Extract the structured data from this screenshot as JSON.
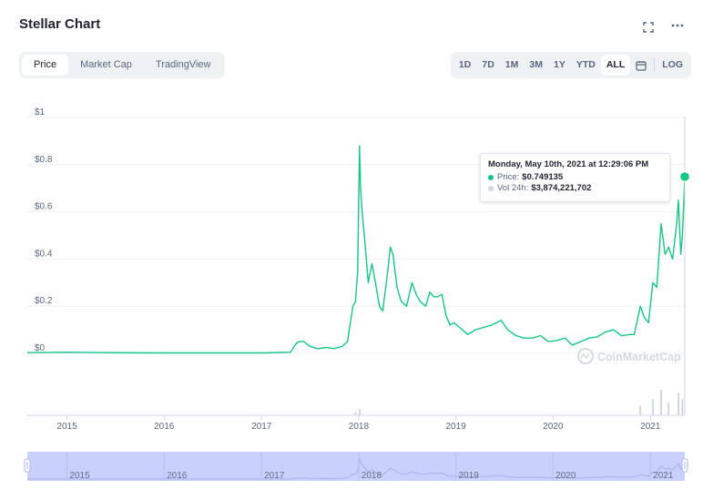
{
  "header": {
    "title": "Stellar Chart",
    "expand_icon": "expand-icon",
    "more_icon": "more-dots-icon"
  },
  "tabs": [
    {
      "label": "Price",
      "active": true
    },
    {
      "label": "Market Cap",
      "active": false
    },
    {
      "label": "TradingView",
      "active": false
    }
  ],
  "ranges": [
    {
      "label": "1D",
      "active": false
    },
    {
      "label": "7D",
      "active": false
    },
    {
      "label": "1M",
      "active": false
    },
    {
      "label": "3M",
      "active": false
    },
    {
      "label": "1Y",
      "active": false
    },
    {
      "label": "YTD",
      "active": false
    },
    {
      "label": "ALL",
      "active": true
    }
  ],
  "calendar_icon": "calendar-icon",
  "log_label": "LOG",
  "tooltip": {
    "date": "Monday, May 10th, 2021 at 12:29:06 PM",
    "price_label": "Price:",
    "price_value": "$0.749135",
    "vol_label": "Vol 24h:",
    "vol_value": "$3,874,221,702"
  },
  "watermark": "CoinMarketCap",
  "colors": {
    "line": "#16c784",
    "volume": "#cfd6e4",
    "navigator": "#c9d0fb",
    "accent_dot": "#16c784"
  },
  "chart_data": {
    "type": "line",
    "title": "Stellar Chart",
    "series": [
      {
        "name": "Price",
        "points": [
          [
            "2014-08-05",
            0.003
          ],
          [
            "2015-01-01",
            0.005
          ],
          [
            "2015-06-01",
            0.003
          ],
          [
            "2016-01-01",
            0.002
          ],
          [
            "2016-06-01",
            0.002
          ],
          [
            "2017-01-01",
            0.002
          ],
          [
            "2017-04-20",
            0.005
          ],
          [
            "2017-05-10",
            0.04
          ],
          [
            "2017-05-20",
            0.05
          ],
          [
            "2017-06-10",
            0.05
          ],
          [
            "2017-07-01",
            0.03
          ],
          [
            "2017-08-01",
            0.02
          ],
          [
            "2017-09-01",
            0.025
          ],
          [
            "2017-10-01",
            0.02
          ],
          [
            "2017-11-01",
            0.03
          ],
          [
            "2017-11-20",
            0.05
          ],
          [
            "2017-12-10",
            0.2
          ],
          [
            "2017-12-20",
            0.22
          ],
          [
            "2017-12-28",
            0.35
          ],
          [
            "2018-01-04",
            0.88
          ],
          [
            "2018-01-08",
            0.7
          ],
          [
            "2018-01-14",
            0.6
          ],
          [
            "2018-01-22",
            0.5
          ],
          [
            "2018-02-06",
            0.3
          ],
          [
            "2018-02-20",
            0.38
          ],
          [
            "2018-03-05",
            0.3
          ],
          [
            "2018-03-20",
            0.2
          ],
          [
            "2018-04-01",
            0.18
          ],
          [
            "2018-04-15",
            0.3
          ],
          [
            "2018-04-30",
            0.45
          ],
          [
            "2018-05-10",
            0.42
          ],
          [
            "2018-05-25",
            0.28
          ],
          [
            "2018-06-10",
            0.22
          ],
          [
            "2018-06-30",
            0.2
          ],
          [
            "2018-07-20",
            0.3
          ],
          [
            "2018-08-05",
            0.25
          ],
          [
            "2018-08-20",
            0.22
          ],
          [
            "2018-09-10",
            0.2
          ],
          [
            "2018-09-25",
            0.26
          ],
          [
            "2018-10-10",
            0.24
          ],
          [
            "2018-10-25",
            0.24
          ],
          [
            "2018-11-10",
            0.25
          ],
          [
            "2018-11-25",
            0.16
          ],
          [
            "2018-12-10",
            0.12
          ],
          [
            "2018-12-25",
            0.13
          ],
          [
            "2019-01-15",
            0.11
          ],
          [
            "2019-02-15",
            0.08
          ],
          [
            "2019-03-15",
            0.1
          ],
          [
            "2019-04-15",
            0.11
          ],
          [
            "2019-05-15",
            0.12
          ],
          [
            "2019-06-20",
            0.14
          ],
          [
            "2019-07-15",
            0.1
          ],
          [
            "2019-08-15",
            0.075
          ],
          [
            "2019-09-15",
            0.065
          ],
          [
            "2019-10-15",
            0.065
          ],
          [
            "2019-11-15",
            0.075
          ],
          [
            "2019-12-15",
            0.05
          ],
          [
            "2020-01-15",
            0.055
          ],
          [
            "2020-02-15",
            0.065
          ],
          [
            "2020-03-13",
            0.035
          ],
          [
            "2020-04-15",
            0.05
          ],
          [
            "2020-05-15",
            0.065
          ],
          [
            "2020-06-15",
            0.07
          ],
          [
            "2020-07-15",
            0.09
          ],
          [
            "2020-08-15",
            0.1
          ],
          [
            "2020-09-15",
            0.075
          ],
          [
            "2020-10-15",
            0.08
          ],
          [
            "2020-11-01",
            0.08
          ],
          [
            "2020-11-24",
            0.2
          ],
          [
            "2020-12-10",
            0.15
          ],
          [
            "2020-12-25",
            0.13
          ],
          [
            "2021-01-10",
            0.3
          ],
          [
            "2021-01-25",
            0.28
          ],
          [
            "2021-02-10",
            0.55
          ],
          [
            "2021-02-25",
            0.42
          ],
          [
            "2021-03-10",
            0.45
          ],
          [
            "2021-03-25",
            0.4
          ],
          [
            "2021-04-10",
            0.55
          ],
          [
            "2021-04-16",
            0.65
          ],
          [
            "2021-04-25",
            0.42
          ],
          [
            "2021-05-01",
            0.5
          ],
          [
            "2021-05-10",
            0.749135
          ]
        ]
      }
    ],
    "xlabel": "",
    "ylabel": "",
    "x_ticks": [
      "2015",
      "2016",
      "2017",
      "2018",
      "2019",
      "2020",
      "2021"
    ],
    "y_ticks": [
      "$0",
      "$0.2",
      "$0.4",
      "$0.6",
      "$0.8",
      "$1"
    ],
    "ylim": [
      0,
      1
    ],
    "xlim": [
      "2014-08-05",
      "2021-05-10"
    ],
    "grid": true,
    "legend": "none",
    "volume_spikes": [
      [
        "2017-12-20",
        0.1
      ],
      [
        "2018-01-05",
        0.2
      ],
      [
        "2020-11-24",
        0.3
      ],
      [
        "2021-01-10",
        0.5
      ],
      [
        "2021-02-10",
        0.8
      ],
      [
        "2021-03-10",
        0.4
      ],
      [
        "2021-04-16",
        0.7
      ],
      [
        "2021-05-01",
        0.5
      ]
    ]
  }
}
